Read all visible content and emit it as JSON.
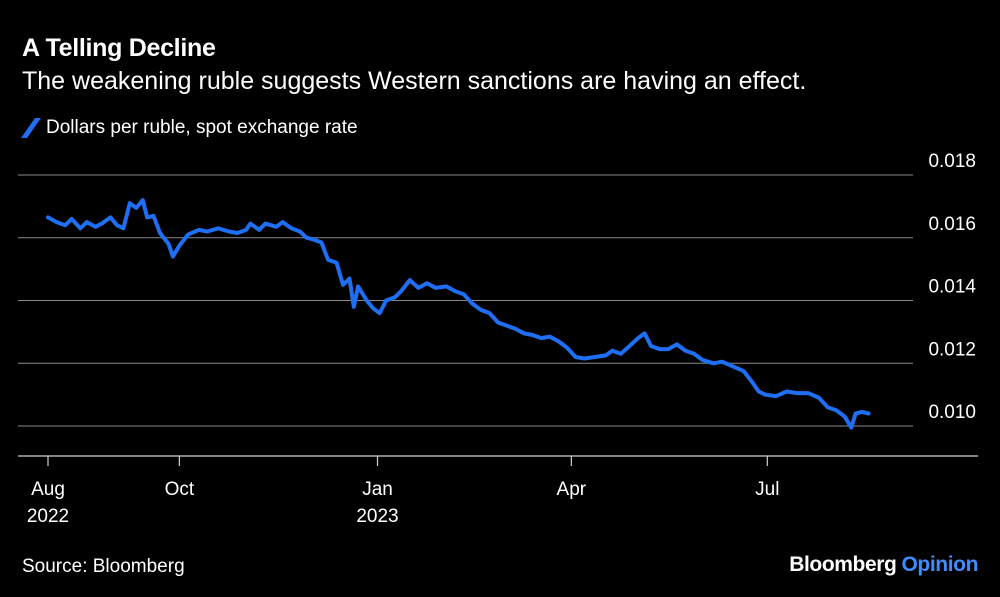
{
  "header": {
    "title": "A Telling Decline",
    "subtitle": "The weakening ruble suggests Western sanctions are having an effect."
  },
  "legend": {
    "label": "Dollars per ruble, spot exchange rate"
  },
  "footer": {
    "source": "Source: Bloomberg",
    "brand_name": "Bloomberg",
    "brand_section": "Opinion"
  },
  "colors": {
    "background": "#000000",
    "series": "#1f6ff5",
    "gridline": "#8a8a8a",
    "text": "#ffffff",
    "brand_accent": "#3f8cff"
  },
  "chart_data": {
    "type": "line",
    "title": "A Telling Decline",
    "subtitle": "The weakening ruble suggests Western sanctions are having an effect.",
    "xlabel": "",
    "ylabel": "",
    "x_range": [
      "2022-08-01",
      "2023-08-20"
    ],
    "ylim": [
      0.009,
      0.018
    ],
    "yticks": [
      0.01,
      0.012,
      0.014,
      0.016,
      0.018
    ],
    "ytick_labels": [
      "0.010",
      "0.012",
      "0.014",
      "0.016",
      "0.018"
    ],
    "xticks": [
      {
        "date": "2022-08-01",
        "label": "Aug",
        "sublabel": "2022"
      },
      {
        "date": "2022-10-01",
        "label": "Oct",
        "sublabel": ""
      },
      {
        "date": "2023-01-01",
        "label": "Jan",
        "sublabel": "2023"
      },
      {
        "date": "2023-04-01",
        "label": "Apr",
        "sublabel": ""
      },
      {
        "date": "2023-07-01",
        "label": "Jul",
        "sublabel": ""
      }
    ],
    "grid": "horizontal",
    "legend_position": "top-left",
    "series": [
      {
        "name": "Dollars per ruble, spot exchange rate",
        "points": [
          [
            "2022-08-01",
            0.01665
          ],
          [
            "2022-08-05",
            0.0165
          ],
          [
            "2022-08-09",
            0.0164
          ],
          [
            "2022-08-12",
            0.0166
          ],
          [
            "2022-08-16",
            0.0163
          ],
          [
            "2022-08-19",
            0.0165
          ],
          [
            "2022-08-23",
            0.01635
          ],
          [
            "2022-08-26",
            0.01645
          ],
          [
            "2022-08-30",
            0.01665
          ],
          [
            "2022-09-02",
            0.0164
          ],
          [
            "2022-09-05",
            0.0163
          ],
          [
            "2022-09-08",
            0.0171
          ],
          [
            "2022-09-11",
            0.01695
          ],
          [
            "2022-09-14",
            0.0172
          ],
          [
            "2022-09-16",
            0.01665
          ],
          [
            "2022-09-19",
            0.0167
          ],
          [
            "2022-09-22",
            0.01615
          ],
          [
            "2022-09-26",
            0.0158
          ],
          [
            "2022-09-28",
            0.0154
          ],
          [
            "2022-10-01",
            0.01575
          ],
          [
            "2022-10-05",
            0.0161
          ],
          [
            "2022-10-10",
            0.01625
          ],
          [
            "2022-10-14",
            0.0162
          ],
          [
            "2022-10-19",
            0.0163
          ],
          [
            "2022-10-24",
            0.0162
          ],
          [
            "2022-10-28",
            0.01615
          ],
          [
            "2022-11-01",
            0.01625
          ],
          [
            "2022-11-03",
            0.01645
          ],
          [
            "2022-11-07",
            0.01625
          ],
          [
            "2022-11-10",
            0.01645
          ],
          [
            "2022-11-15",
            0.01635
          ],
          [
            "2022-11-18",
            0.0165
          ],
          [
            "2022-11-22",
            0.0163
          ],
          [
            "2022-11-26",
            0.0162
          ],
          [
            "2022-11-29",
            0.016
          ],
          [
            "2022-12-02",
            0.01595
          ],
          [
            "2022-12-06",
            0.01585
          ],
          [
            "2022-12-09",
            0.0153
          ],
          [
            "2022-12-13",
            0.0152
          ],
          [
            "2022-12-16",
            0.0145
          ],
          [
            "2022-12-19",
            0.0147
          ],
          [
            "2022-12-21",
            0.0138
          ],
          [
            "2022-12-23",
            0.01445
          ],
          [
            "2022-12-27",
            0.014
          ],
          [
            "2022-12-30",
            0.01375
          ],
          [
            "2023-01-02",
            0.0136
          ],
          [
            "2023-01-05",
            0.014
          ],
          [
            "2023-01-09",
            0.0141
          ],
          [
            "2023-01-12",
            0.0143
          ],
          [
            "2023-01-16",
            0.01465
          ],
          [
            "2023-01-20",
            0.0144
          ],
          [
            "2023-01-24",
            0.01455
          ],
          [
            "2023-01-28",
            0.0144
          ],
          [
            "2023-02-02",
            0.01445
          ],
          [
            "2023-02-06",
            0.0143
          ],
          [
            "2023-02-10",
            0.0142
          ],
          [
            "2023-02-14",
            0.0139
          ],
          [
            "2023-02-18",
            0.0137
          ],
          [
            "2023-02-22",
            0.0136
          ],
          [
            "2023-02-26",
            0.0133
          ],
          [
            "2023-03-02",
            0.0132
          ],
          [
            "2023-03-06",
            0.0131
          ],
          [
            "2023-03-10",
            0.01295
          ],
          [
            "2023-03-14",
            0.0129
          ],
          [
            "2023-03-18",
            0.0128
          ],
          [
            "2023-03-22",
            0.01285
          ],
          [
            "2023-03-26",
            0.0127
          ],
          [
            "2023-03-30",
            0.0125
          ],
          [
            "2023-04-03",
            0.0122
          ],
          [
            "2023-04-07",
            0.01215
          ],
          [
            "2023-04-12",
            0.0122
          ],
          [
            "2023-04-17",
            0.01225
          ],
          [
            "2023-04-20",
            0.0124
          ],
          [
            "2023-04-24",
            0.0123
          ],
          [
            "2023-04-28",
            0.01255
          ],
          [
            "2023-05-02",
            0.0128
          ],
          [
            "2023-05-05",
            0.01295
          ],
          [
            "2023-05-08",
            0.01255
          ],
          [
            "2023-05-12",
            0.01245
          ],
          [
            "2023-05-16",
            0.01245
          ],
          [
            "2023-05-20",
            0.0126
          ],
          [
            "2023-05-24",
            0.0124
          ],
          [
            "2023-05-28",
            0.0123
          ],
          [
            "2023-06-01",
            0.0121
          ],
          [
            "2023-06-06",
            0.012
          ],
          [
            "2023-06-10",
            0.01205
          ],
          [
            "2023-06-15",
            0.0119
          ],
          [
            "2023-06-20",
            0.01175
          ],
          [
            "2023-06-24",
            0.0114
          ],
          [
            "2023-06-27",
            0.0111
          ],
          [
            "2023-06-30",
            0.011
          ],
          [
            "2023-07-05",
            0.01095
          ],
          [
            "2023-07-10",
            0.0111
          ],
          [
            "2023-07-15",
            0.01105
          ],
          [
            "2023-07-20",
            0.01105
          ],
          [
            "2023-07-25",
            0.0109
          ],
          [
            "2023-07-29",
            0.0106
          ],
          [
            "2023-08-02",
            0.0105
          ],
          [
            "2023-08-06",
            0.0103
          ],
          [
            "2023-08-09",
            0.00995
          ],
          [
            "2023-08-11",
            0.0104
          ],
          [
            "2023-08-14",
            0.01045
          ],
          [
            "2023-08-17",
            0.0104
          ]
        ]
      }
    ]
  }
}
